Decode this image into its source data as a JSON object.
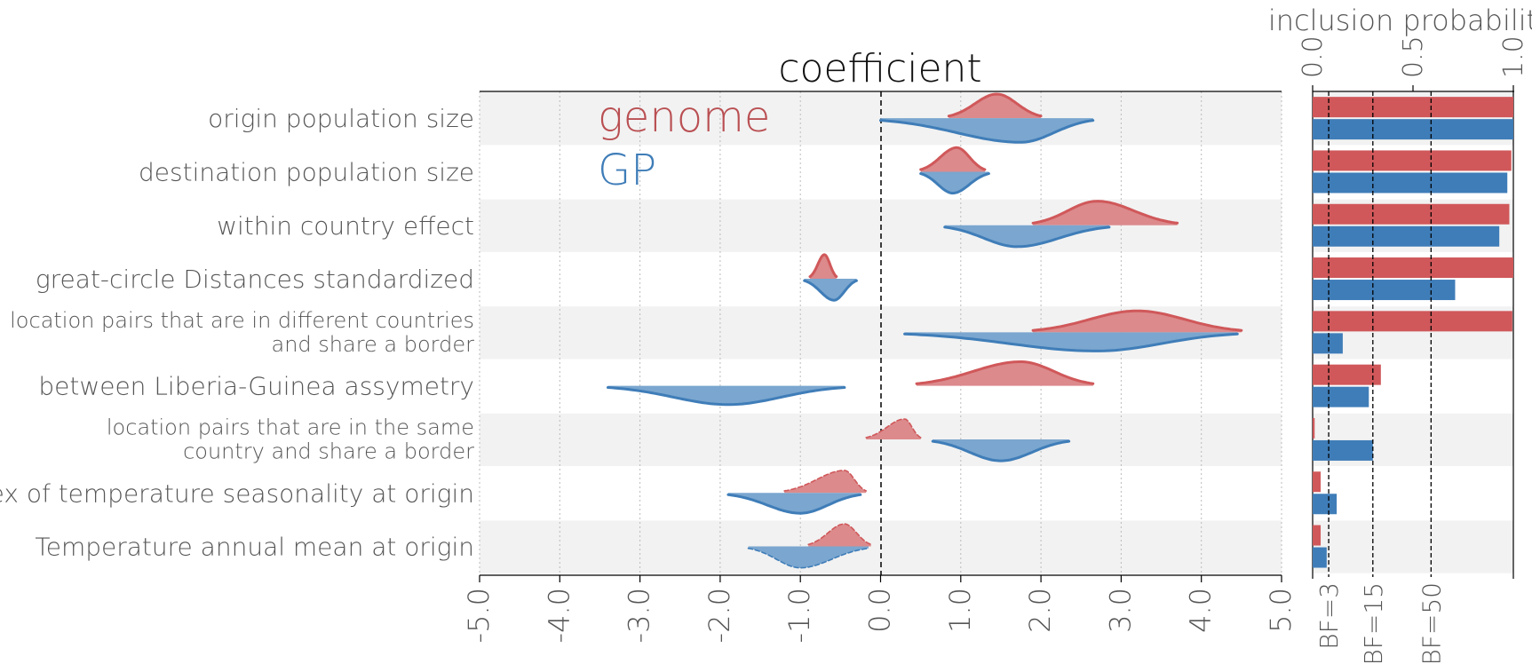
{
  "chart_data": [
    {
      "type": "violin",
      "title": "coefficient",
      "xlim": [
        -5.0,
        5.0
      ],
      "xticks": [
        "-5.0",
        "-4.0",
        "-3.0",
        "-2.0",
        "-1.0",
        "0.0",
        "1.0",
        "2.0",
        "3.0",
        "4.0",
        "5.0"
      ],
      "reference_line": 0.0,
      "series": [
        {
          "name": "genome",
          "color": "#d0585a",
          "side": "top"
        },
        {
          "name": "GP",
          "color": "#3f7db8",
          "side": "bottom"
        }
      ],
      "categories": [
        {
          "label": [
            "origin population size"
          ],
          "genome": {
            "min": 0.85,
            "mode": 1.45,
            "max": 2.0,
            "height": 0.45,
            "dashed": false
          },
          "GP": {
            "min": 0.0,
            "mode": 1.75,
            "max": 2.65,
            "height": 0.45,
            "dashed": false
          }
        },
        {
          "label": [
            "destination population size"
          ],
          "genome": {
            "min": 0.5,
            "mode": 0.95,
            "max": 1.3,
            "height": 0.45,
            "dashed": false
          },
          "GP": {
            "min": 0.5,
            "mode": 0.9,
            "max": 1.35,
            "height": 0.4,
            "dashed": false
          }
        },
        {
          "label": [
            "within country effect"
          ],
          "genome": {
            "min": 1.9,
            "mode": 2.7,
            "max": 3.7,
            "height": 0.45,
            "dashed": false
          },
          "GP": {
            "min": 0.8,
            "mode": 1.7,
            "max": 2.85,
            "height": 0.4,
            "dashed": false
          }
        },
        {
          "label": [
            "great-circle Distances standardized"
          ],
          "genome": {
            "min": -0.88,
            "mode": -0.7,
            "max": -0.55,
            "height": 0.45,
            "dashed": false
          },
          "GP": {
            "min": -0.95,
            "mode": -0.58,
            "max": -0.3,
            "height": 0.4,
            "dashed": false
          }
        },
        {
          "label": [
            "location pairs that are in different countries",
            "and share a border"
          ],
          "genome": {
            "min": 1.9,
            "mode": 3.2,
            "max": 4.5,
            "height": 0.4,
            "dashed": false
          },
          "GP": {
            "min": 0.3,
            "mode": 2.7,
            "max": 4.45,
            "height": 0.35,
            "dashed": false
          }
        },
        {
          "label": [
            "between Liberia-Guinea assymetry"
          ],
          "genome": {
            "min": 0.45,
            "mode": 1.75,
            "max": 2.65,
            "height": 0.45,
            "dashed": false
          },
          "GP": {
            "min": -3.4,
            "mode": -1.9,
            "max": -0.45,
            "height": 0.35,
            "dashed": false
          }
        },
        {
          "label": [
            "location pairs that are in the same",
            "country and share a border"
          ],
          "genome": {
            "min": -0.18,
            "mode": 0.3,
            "max": 0.5,
            "height": 0.38,
            "dashed": true
          },
          "GP": {
            "min": 0.65,
            "mode": 1.5,
            "max": 2.35,
            "height": 0.4,
            "dashed": false
          }
        },
        {
          "label": [
            "index of temperature seasonality at origin"
          ],
          "genome": {
            "min": -1.2,
            "mode": -0.45,
            "max": -0.18,
            "height": 0.42,
            "dashed": true
          },
          "GP": {
            "min": -1.9,
            "mode": -1.0,
            "max": -0.25,
            "height": 0.38,
            "dashed": false
          }
        },
        {
          "label": [
            "Temperature annual mean at origin"
          ],
          "genome": {
            "min": -0.9,
            "mode": -0.45,
            "max": -0.12,
            "height": 0.42,
            "dashed": true
          },
          "GP": {
            "min": -1.65,
            "mode": -1.0,
            "max": -0.15,
            "height": 0.4,
            "dashed": true
          }
        }
      ]
    },
    {
      "type": "bar",
      "title": "inclusion probability",
      "orientation": "horizontal",
      "xlim": [
        0.0,
        1.0
      ],
      "xticks": [
        "0.0",
        "0.5",
        "1.0"
      ],
      "series": [
        {
          "name": "genome",
          "color": "#d0585a",
          "values": [
            1.0,
            0.99,
            0.98,
            1.0,
            0.995,
            0.34,
            0.01,
            0.04,
            0.04
          ]
        },
        {
          "name": "GP",
          "color": "#3f7db8",
          "values": [
            1.0,
            0.97,
            0.93,
            0.71,
            0.15,
            0.28,
            0.3,
            0.12,
            0.07
          ]
        }
      ],
      "reference_lines": [
        {
          "label": "BF=3",
          "value": 0.08
        },
        {
          "label": "BF=15",
          "value": 0.3
        },
        {
          "label": "BF=50",
          "value": 0.59
        }
      ]
    }
  ]
}
